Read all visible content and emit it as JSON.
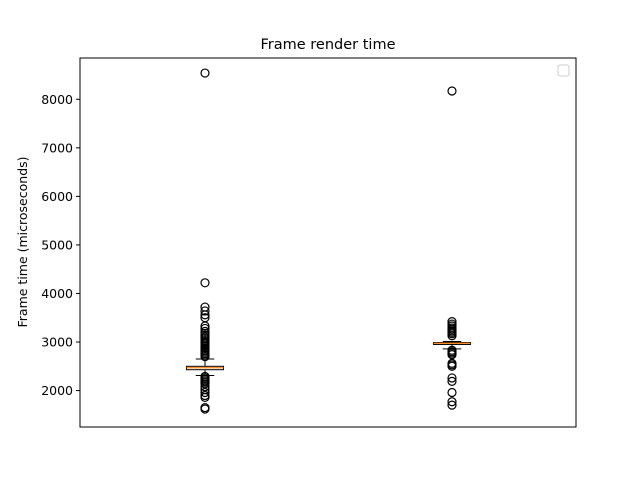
{
  "chart_data": {
    "type": "box",
    "title": "Frame render time",
    "xlabel": "",
    "ylabel": "Frame time (microseconds)",
    "ylim": [
      1250,
      8850
    ],
    "yticks": [
      2000,
      3000,
      4000,
      5000,
      6000,
      7000,
      8000
    ],
    "grid": false,
    "legend": {
      "placement": "top-right",
      "entries": []
    },
    "median_color": "#ff7f0e",
    "series": [
      {
        "q1": 2430,
        "median": 2470,
        "q3": 2500,
        "whisker_low": 2310,
        "whisker_high": 2650,
        "outliers": [
          8540,
          4220,
          3720,
          3640,
          3560,
          3500,
          3330,
          3280,
          3220,
          3180,
          3140,
          3100,
          3070,
          3030,
          3000,
          2970,
          2940,
          2910,
          2880,
          2850,
          2820,
          2790,
          2760,
          2730,
          2700,
          2290,
          2260,
          2230,
          2200,
          2170,
          2140,
          2080,
          2020,
          1960,
          1900,
          1860,
          1650,
          1620
        ]
      },
      {
        "q1": 2950,
        "median": 2975,
        "q3": 2990,
        "whisker_low": 2860,
        "whisker_high": 3010,
        "outliers": [
          8170,
          3420,
          3370,
          3330,
          3290,
          3260,
          3230,
          3200,
          3170,
          3130,
          2830,
          2800,
          2770,
          2740,
          2560,
          2530,
          2500,
          2260,
          2190,
          1960,
          1770,
          1700
        ]
      }
    ]
  }
}
